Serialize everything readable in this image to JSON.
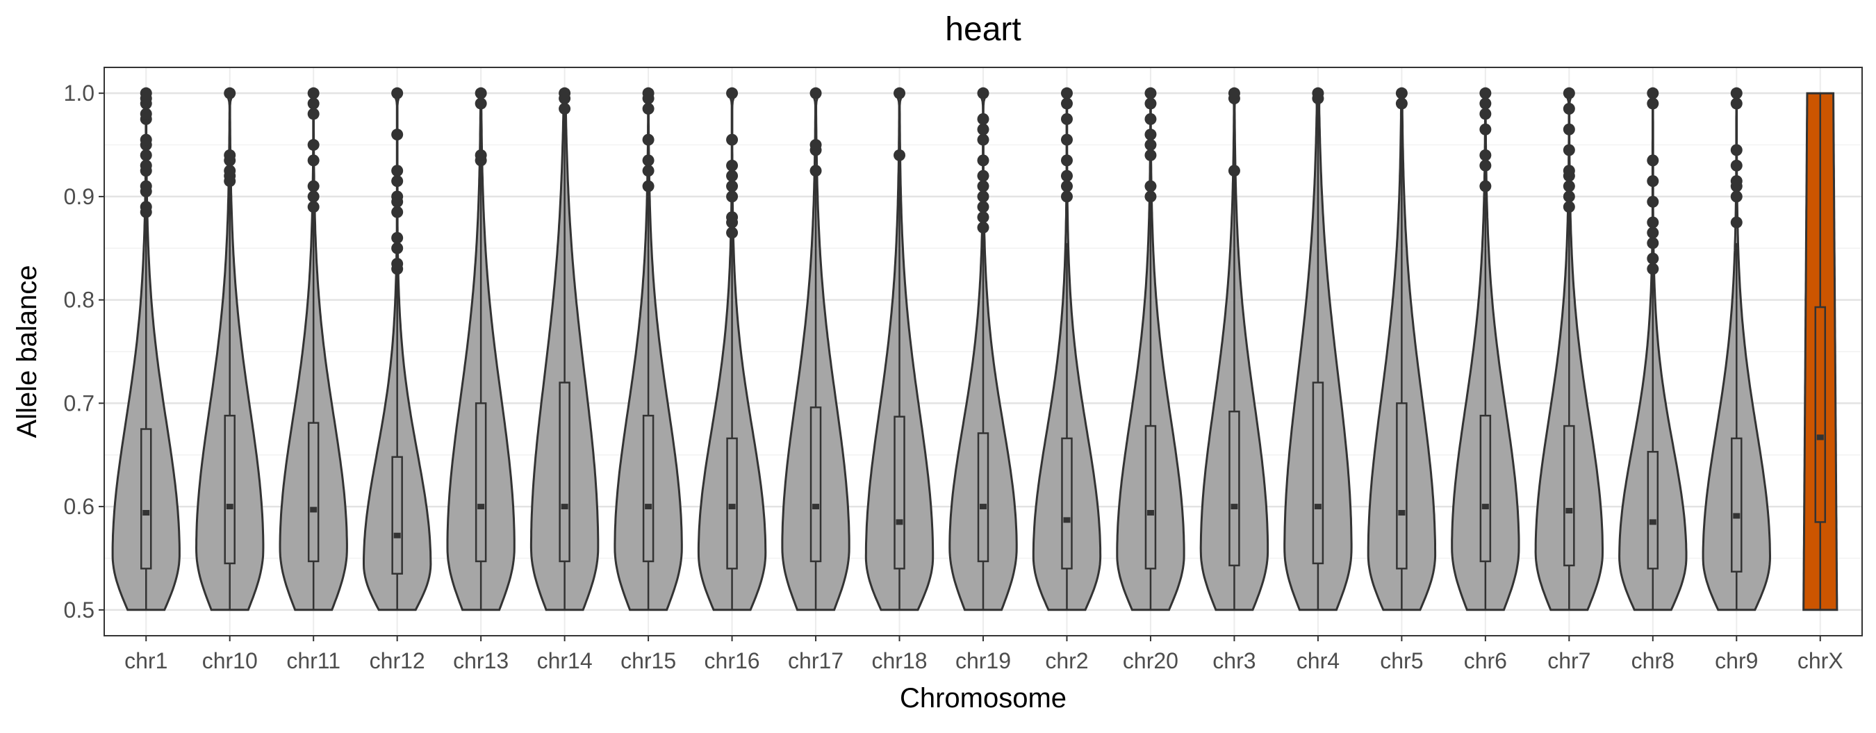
{
  "chart_data": {
    "type": "violin",
    "title": "heart",
    "xlabel": "Chromosome",
    "ylabel": "Allele balance",
    "ylim": [
      0.475,
      1.025
    ],
    "yticks": [
      "0.5",
      "0.6",
      "0.7",
      "0.8",
      "0.9",
      "1.0"
    ],
    "grid": true,
    "colors": {
      "default_fill": "#a6a6a6",
      "highlight_fill": "#cc5500",
      "outline": "#333333"
    },
    "categories": [
      {
        "label": "chr1",
        "q1": 0.54,
        "median": 0.594,
        "q3": 0.675,
        "upper_whisker": 0.88,
        "outliers": [
          0.885,
          0.89,
          0.905,
          0.91,
          0.925,
          0.93,
          0.94,
          0.95,
          0.955,
          0.975,
          0.98,
          0.99,
          0.995,
          1.0
        ]
      },
      {
        "label": "chr10",
        "q1": 0.545,
        "median": 0.6,
        "q3": 0.688,
        "upper_whisker": 0.91,
        "outliers": [
          0.915,
          0.92,
          0.925,
          0.935,
          0.94,
          1.0
        ]
      },
      {
        "label": "chr11",
        "q1": 0.547,
        "median": 0.597,
        "q3": 0.681,
        "upper_whisker": 0.885,
        "outliers": [
          0.89,
          0.9,
          0.91,
          0.935,
          0.95,
          0.98,
          0.99,
          1.0
        ]
      },
      {
        "label": "chr12",
        "q1": 0.535,
        "median": 0.572,
        "q3": 0.648,
        "upper_whisker": 0.825,
        "outliers": [
          0.83,
          0.835,
          0.85,
          0.86,
          0.885,
          0.895,
          0.9,
          0.915,
          0.925,
          0.96,
          1.0
        ]
      },
      {
        "label": "chr13",
        "q1": 0.547,
        "median": 0.6,
        "q3": 0.7,
        "upper_whisker": 0.93,
        "outliers": [
          0.935,
          0.94,
          0.99,
          1.0
        ]
      },
      {
        "label": "chr14",
        "q1": 0.547,
        "median": 0.6,
        "q3": 0.72,
        "upper_whisker": 0.98,
        "outliers": [
          0.985,
          0.995,
          1.0
        ]
      },
      {
        "label": "chr15",
        "q1": 0.547,
        "median": 0.6,
        "q3": 0.688,
        "upper_whisker": 0.905,
        "outliers": [
          0.91,
          0.925,
          0.935,
          0.955,
          0.985,
          0.995,
          1.0
        ]
      },
      {
        "label": "chr16",
        "q1": 0.54,
        "median": 0.6,
        "q3": 0.666,
        "upper_whisker": 0.86,
        "outliers": [
          0.865,
          0.875,
          0.88,
          0.9,
          0.91,
          0.92,
          0.93,
          0.955,
          1.0
        ]
      },
      {
        "label": "chr17",
        "q1": 0.547,
        "median": 0.6,
        "q3": 0.696,
        "upper_whisker": 0.92,
        "outliers": [
          0.925,
          0.945,
          0.95,
          1.0
        ]
      },
      {
        "label": "chr18",
        "q1": 0.54,
        "median": 0.585,
        "q3": 0.687,
        "upper_whisker": 0.935,
        "outliers": [
          0.94,
          1.0
        ]
      },
      {
        "label": "chr19",
        "q1": 0.547,
        "median": 0.6,
        "q3": 0.671,
        "upper_whisker": 0.865,
        "outliers": [
          0.87,
          0.88,
          0.89,
          0.9,
          0.91,
          0.92,
          0.935,
          0.955,
          0.965,
          0.975,
          1.0
        ]
      },
      {
        "label": "chr2",
        "q1": 0.54,
        "median": 0.587,
        "q3": 0.666,
        "upper_whisker": 0.855,
        "outliers": [
          0.9,
          0.91,
          0.92,
          0.935,
          0.955,
          0.975,
          0.99,
          1.0
        ]
      },
      {
        "label": "chr20",
        "q1": 0.54,
        "median": 0.594,
        "q3": 0.678,
        "upper_whisker": 0.895,
        "outliers": [
          0.9,
          0.91,
          0.94,
          0.95,
          0.96,
          0.975,
          0.99,
          1.0
        ]
      },
      {
        "label": "chr3",
        "q1": 0.543,
        "median": 0.6,
        "q3": 0.692,
        "upper_whisker": 0.92,
        "outliers": [
          0.925,
          0.995,
          1.0
        ]
      },
      {
        "label": "chr4",
        "q1": 0.545,
        "median": 0.6,
        "q3": 0.72,
        "upper_whisker": 0.99,
        "outliers": [
          0.995,
          1.0
        ]
      },
      {
        "label": "chr5",
        "q1": 0.54,
        "median": 0.594,
        "q3": 0.7,
        "upper_whisker": 0.985,
        "outliers": [
          0.99,
          1.0
        ]
      },
      {
        "label": "chr6",
        "q1": 0.547,
        "median": 0.6,
        "q3": 0.688,
        "upper_whisker": 0.905,
        "outliers": [
          0.91,
          0.93,
          0.94,
          0.965,
          0.98,
          0.99,
          1.0
        ]
      },
      {
        "label": "chr7",
        "q1": 0.543,
        "median": 0.596,
        "q3": 0.678,
        "upper_whisker": 0.885,
        "outliers": [
          0.89,
          0.9,
          0.91,
          0.92,
          0.925,
          0.945,
          0.965,
          0.985,
          1.0
        ]
      },
      {
        "label": "chr8",
        "q1": 0.54,
        "median": 0.585,
        "q3": 0.653,
        "upper_whisker": 0.825,
        "outliers": [
          0.83,
          0.84,
          0.855,
          0.865,
          0.875,
          0.895,
          0.915,
          0.935,
          0.99,
          1.0
        ]
      },
      {
        "label": "chr9",
        "q1": 0.537,
        "median": 0.591,
        "q3": 0.666,
        "upper_whisker": 0.855,
        "outliers": [
          0.875,
          0.9,
          0.91,
          0.915,
          0.93,
          0.945,
          0.99,
          1.0
        ]
      },
      {
        "label": "chrX",
        "q1": 0.585,
        "median": 0.667,
        "q3": 0.793,
        "upper_whisker": 1.0,
        "outliers": [],
        "highlight": true
      }
    ]
  }
}
